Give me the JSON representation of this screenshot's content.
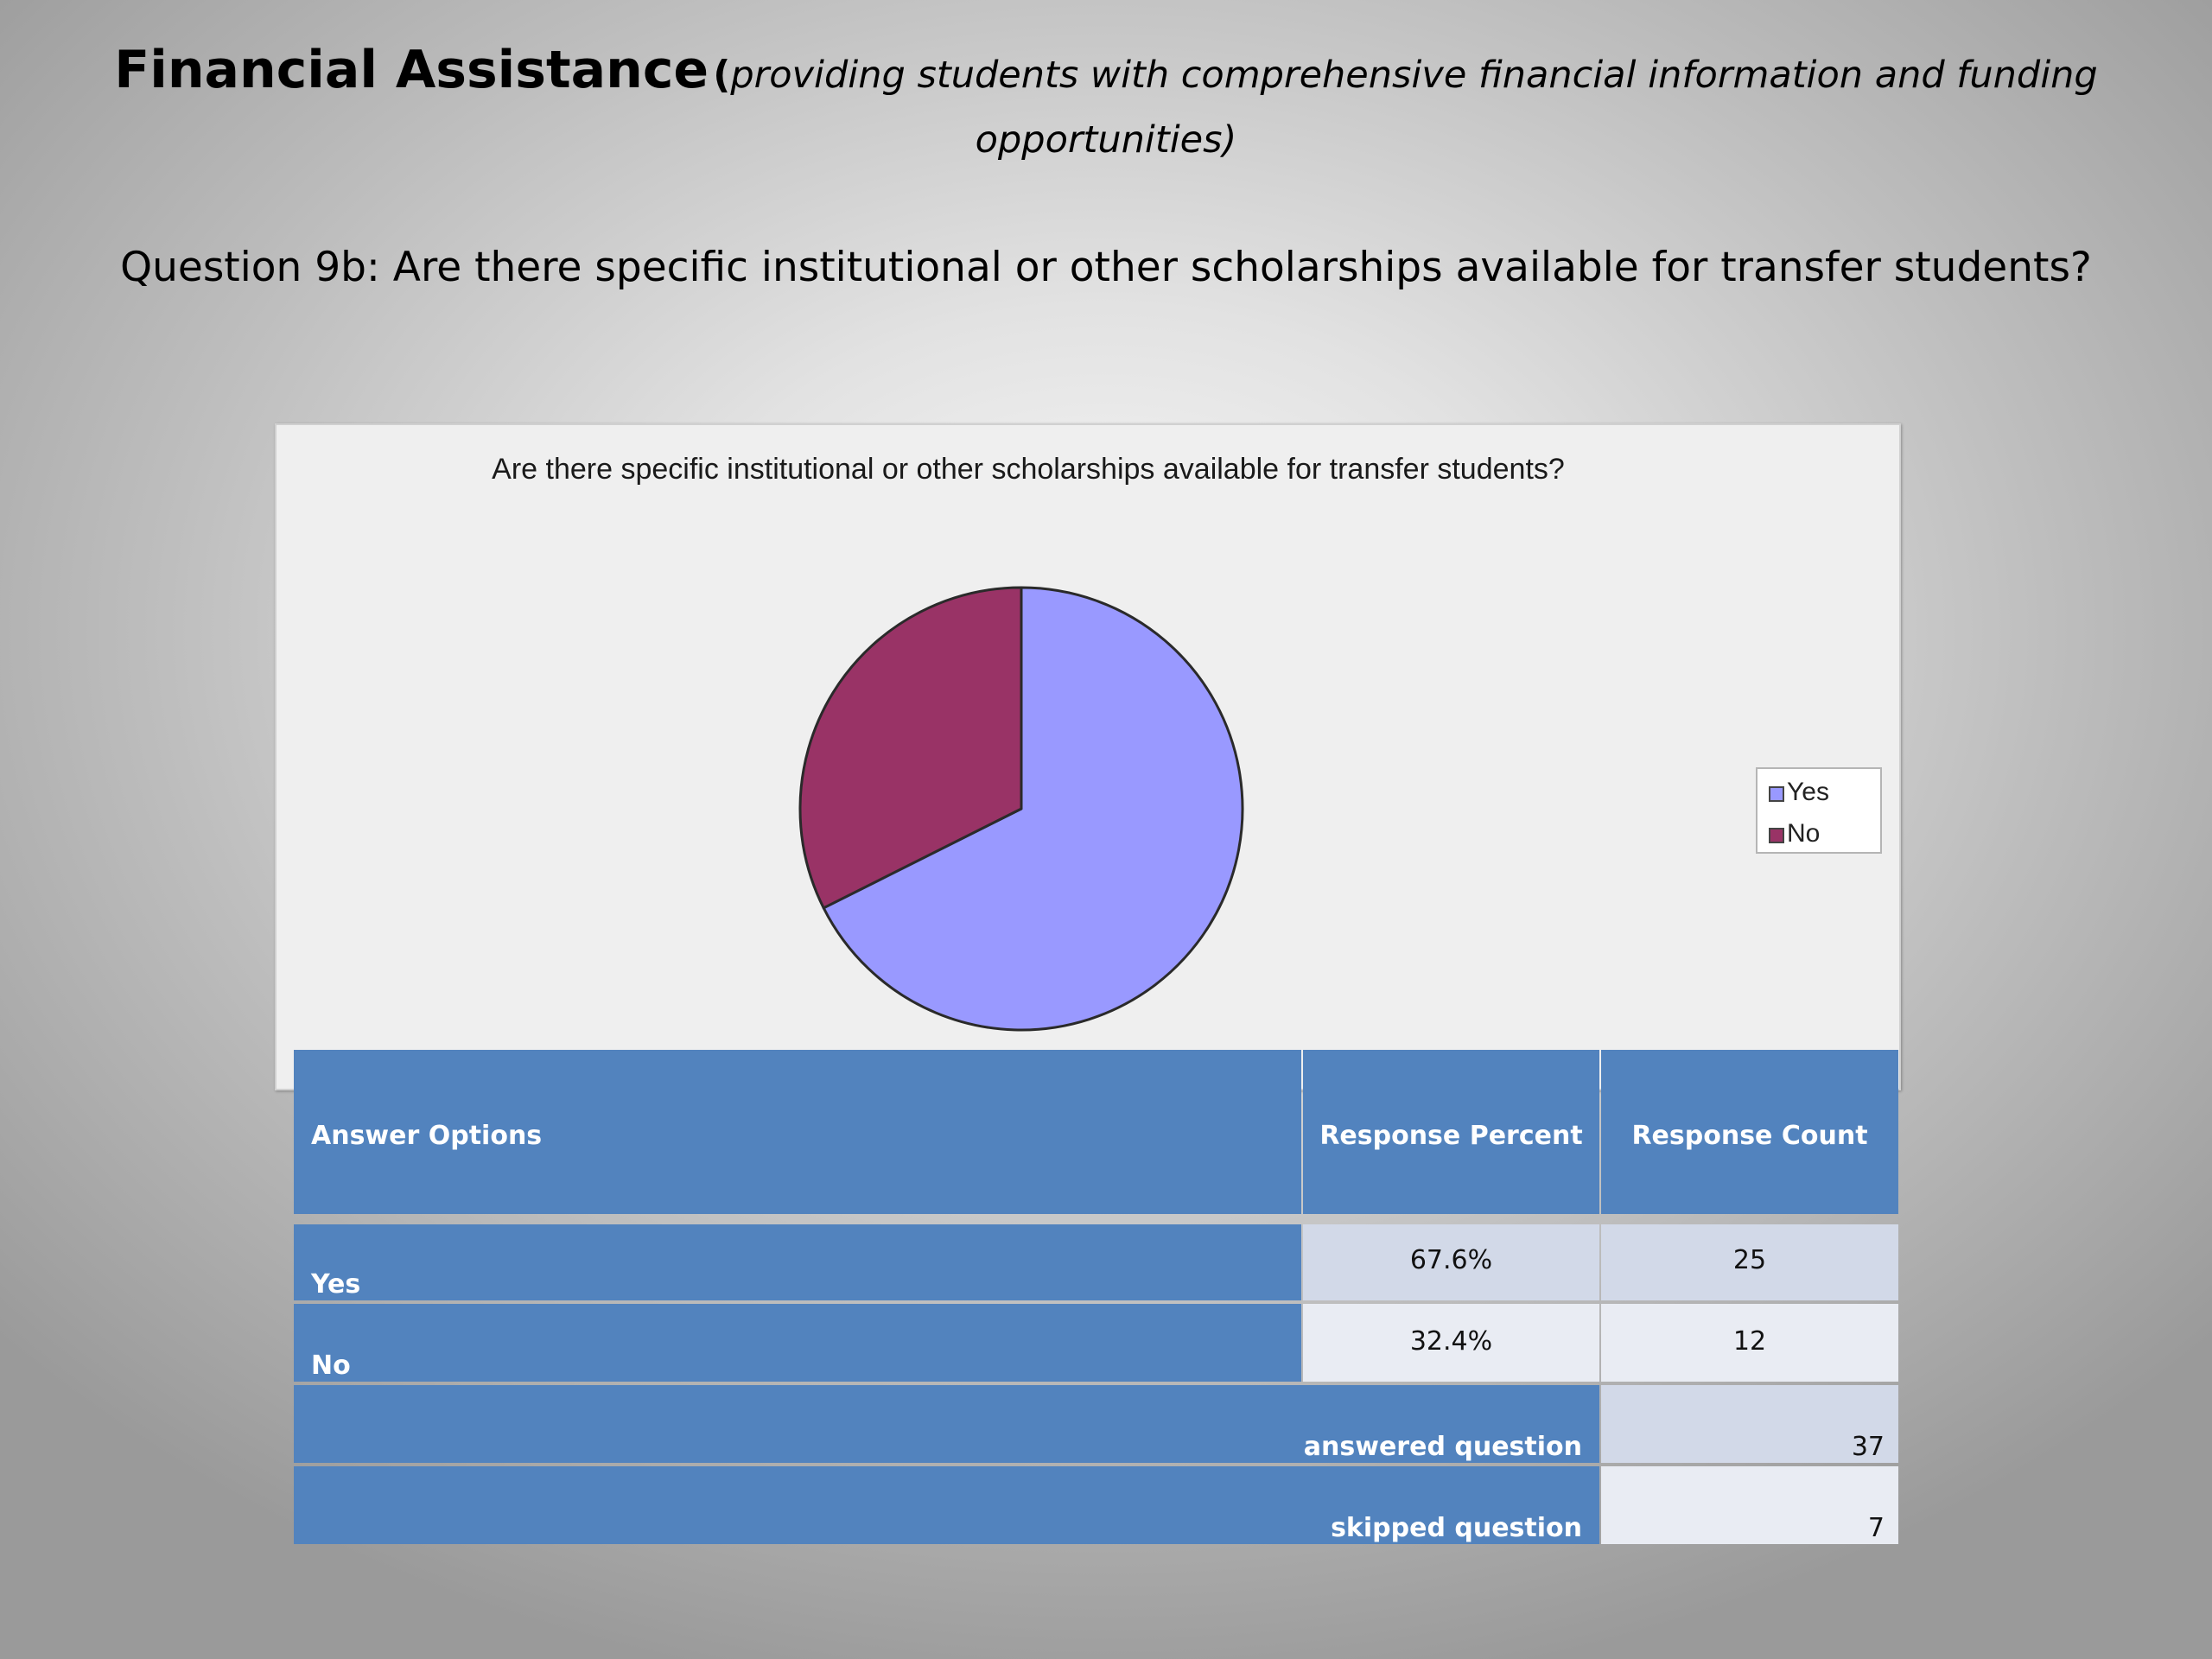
{
  "slide": {
    "title_main": "Financial Assistance",
    "title_open": "(",
    "title_sub": "providing students with comprehensive financial information and funding opportunities)",
    "question": "Question 9b: Are there specific institutional or other scholarships available for transfer students?"
  },
  "chart_data": {
    "type": "pie",
    "title": "Are there specific institutional or other scholarships available for transfer students?",
    "categories": [
      "Yes",
      "No"
    ],
    "values": [
      67.6,
      32.4
    ],
    "colors": [
      "#9999ff",
      "#993366"
    ],
    "legend_position": "right"
  },
  "table": {
    "headers": [
      "Answer Options",
      "Response Percent",
      "Response Count"
    ],
    "rows": [
      {
        "option": "Yes",
        "percent": "67.6%",
        "count": "25"
      },
      {
        "option": "No",
        "percent": "32.4%",
        "count": "12"
      }
    ],
    "answered_label": "answered question",
    "answered_count": "37",
    "skipped_label": "skipped question",
    "skipped_count": "7",
    "colors": {
      "header": "#5283be",
      "row_odd": "#d2d9e8",
      "row_even": "#e9ecf3"
    }
  }
}
